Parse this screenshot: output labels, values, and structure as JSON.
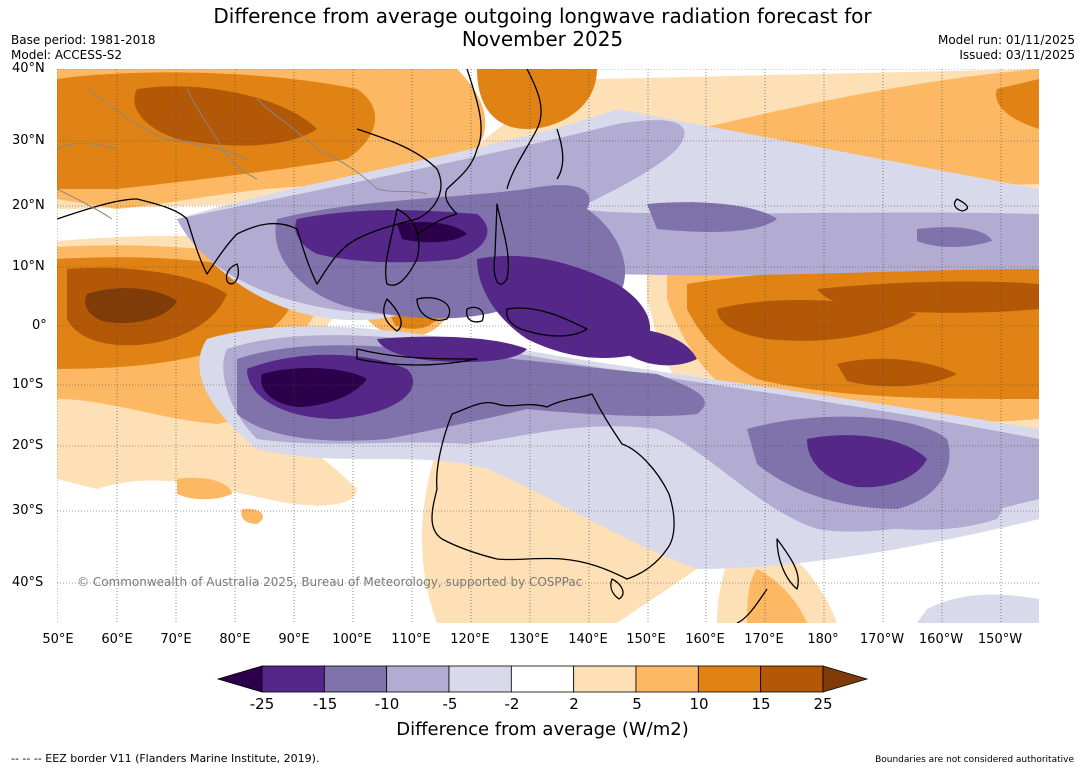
{
  "title": {
    "line1": "Difference from average outgoing longwave radiation forecast for",
    "line2": "November 2025"
  },
  "meta": {
    "base_period": "Base period: 1981-2018",
    "model": "Model: ACCESS-S2",
    "model_run": "Model run: 01/11/2025",
    "issued": "Issued: 03/11/2025"
  },
  "map": {
    "copyright": "© Commonwealth of Australia 2025, Bureau of Meteorology, supported by COSPPac",
    "lat_labels": [
      "40°N",
      "30°N",
      "20°N",
      "10°N",
      "0°",
      "10°S",
      "20°S",
      "30°S",
      "40°S"
    ],
    "lon_labels": [
      "50°E",
      "60°E",
      "70°E",
      "80°E",
      "90°E",
      "100°E",
      "110°E",
      "120°E",
      "130°E",
      "140°E",
      "150°E",
      "160°E",
      "170°E",
      "180°",
      "170°W",
      "160°W",
      "150°W"
    ]
  },
  "colorbar": {
    "title": "Difference from average (W/m2)",
    "ticks": [
      "-25",
      "-15",
      "-10",
      "-5",
      "-2",
      "2",
      "5",
      "10",
      "15",
      "25"
    ],
    "colors": [
      "#2d004b",
      "#542788",
      "#8073ac",
      "#b2abd2",
      "#d8daeb",
      "#ffffff",
      "#fee0b6",
      "#fdb863",
      "#e08214",
      "#b35806",
      "#7f3b08"
    ]
  },
  "footer": {
    "eez": "--  --  -- EEZ border V11 (Flanders Marine Institute, 2019).",
    "disclaimer": "Boundaries are not considered authoritative"
  }
}
